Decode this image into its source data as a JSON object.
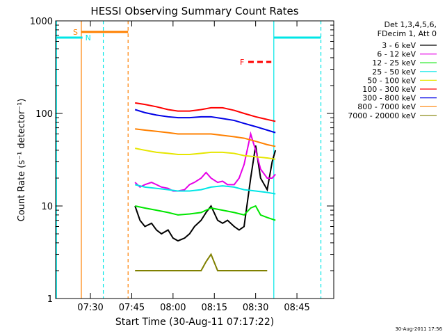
{
  "chart_data": {
    "type": "line",
    "title": "HESSI Observing Summary Count Rates",
    "xlabel": "Start Time (30-Aug-11 07:17:22)",
    "ylabel": "Count Rate (s⁻¹ detector⁻¹)",
    "y_scale": "log",
    "ylim": [
      1,
      1000
    ],
    "xlim": [
      7.2894,
      8.9728
    ],
    "x_ticks": [
      {
        "v": 7.5,
        "label": "07:30"
      },
      {
        "v": 7.75,
        "label": "07:45"
      },
      {
        "v": 8.0,
        "label": "08:00"
      },
      {
        "v": 8.25,
        "label": "08:15"
      },
      {
        "v": 8.5,
        "label": "08:30"
      },
      {
        "v": 8.75,
        "label": "08:45"
      }
    ],
    "y_ticks": [
      {
        "v": 1,
        "label": "1"
      },
      {
        "v": 10,
        "label": "10"
      },
      {
        "v": 100,
        "label": "100"
      },
      {
        "v": 1000,
        "label": "1000"
      }
    ],
    "info": [
      "Det 1,3,4,5,6,",
      "FDecim 1, Att 0"
    ],
    "legend_position": "right",
    "series": [
      {
        "name": "3 - 6 keV",
        "color": "#000000",
        "x": [
          7.77,
          7.8,
          7.83,
          7.87,
          7.9,
          7.93,
          7.97,
          8.0,
          8.03,
          8.07,
          8.1,
          8.13,
          8.17,
          8.2,
          8.23,
          8.27,
          8.3,
          8.33,
          8.37,
          8.4,
          8.43,
          8.47,
          8.5,
          8.53,
          8.57,
          8.6,
          8.62
        ],
        "y": [
          10,
          7,
          6,
          6.5,
          5.5,
          5,
          5.5,
          4.5,
          4.2,
          4.5,
          5,
          6,
          7,
          8.5,
          10,
          7,
          6.5,
          7,
          6,
          5.5,
          6,
          20,
          45,
          20,
          15,
          30,
          40
        ]
      },
      {
        "name": "6 - 12 keV",
        "color": "#e600e6",
        "x": [
          7.77,
          7.8,
          7.83,
          7.87,
          7.9,
          7.93,
          7.97,
          8.0,
          8.03,
          8.07,
          8.1,
          8.13,
          8.17,
          8.2,
          8.23,
          8.27,
          8.3,
          8.33,
          8.37,
          8.4,
          8.43,
          8.47,
          8.5,
          8.53,
          8.57,
          8.6,
          8.62
        ],
        "y": [
          18,
          16,
          17,
          18,
          17,
          16,
          15.5,
          14.5,
          14.5,
          15,
          17,
          18,
          20,
          23,
          20,
          18,
          18.5,
          17,
          17,
          20,
          28,
          60,
          40,
          25,
          20,
          20,
          22
        ]
      },
      {
        "name": "12 - 25 keV",
        "color": "#00e600",
        "x": [
          7.77,
          7.83,
          7.9,
          7.97,
          8.03,
          8.1,
          8.17,
          8.23,
          8.3,
          8.37,
          8.43,
          8.47,
          8.5,
          8.53,
          8.57,
          8.62
        ],
        "y": [
          10,
          9.5,
          9,
          8.5,
          8,
          8.2,
          8.5,
          9.5,
          9,
          8.5,
          8,
          9.5,
          10,
          8,
          7.5,
          7
        ]
      },
      {
        "name": "25 - 50 keV",
        "color": "#00e6e6",
        "x": [
          7.77,
          7.83,
          7.9,
          7.97,
          8.03,
          8.1,
          8.17,
          8.23,
          8.3,
          8.37,
          8.43,
          8.5,
          8.57,
          8.62
        ],
        "y": [
          17,
          16,
          15.5,
          15,
          14.5,
          14.5,
          15,
          16,
          16.5,
          16,
          15,
          14.5,
          14,
          13.5
        ]
      },
      {
        "name": "50 - 100 keV",
        "color": "#e6e600",
        "x": [
          7.77,
          7.83,
          7.9,
          7.97,
          8.03,
          8.1,
          8.17,
          8.23,
          8.3,
          8.37,
          8.43,
          8.5,
          8.57,
          8.62
        ],
        "y": [
          42,
          40,
          38,
          37,
          36,
          36,
          37,
          38,
          38,
          37,
          35,
          34,
          33,
          32
        ]
      },
      {
        "name": "100 - 300 keV",
        "color": "#ff0000",
        "x": [
          7.77,
          7.83,
          7.9,
          7.97,
          8.03,
          8.1,
          8.17,
          8.23,
          8.3,
          8.37,
          8.43,
          8.5,
          8.57,
          8.62
        ],
        "y": [
          130,
          125,
          118,
          110,
          106,
          106,
          110,
          115,
          115,
          108,
          100,
          92,
          86,
          82
        ]
      },
      {
        "name": "300 - 800 keV",
        "color": "#0000e6",
        "x": [
          7.77,
          7.83,
          7.9,
          7.97,
          8.03,
          8.1,
          8.17,
          8.23,
          8.3,
          8.37,
          8.43,
          8.5,
          8.57,
          8.62
        ],
        "y": [
          110,
          102,
          96,
          92,
          90,
          90,
          92,
          92,
          88,
          84,
          78,
          72,
          66,
          62
        ]
      },
      {
        "name": "800 - 7000 keV",
        "color": "#ff8000",
        "x": [
          7.77,
          7.83,
          7.9,
          7.97,
          8.03,
          8.1,
          8.17,
          8.23,
          8.3,
          8.37,
          8.43,
          8.5,
          8.57,
          8.62
        ],
        "y": [
          68,
          66,
          64,
          62,
          60,
          60,
          60,
          60,
          58,
          56,
          54,
          50,
          46,
          44
        ]
      },
      {
        "name": "7000 - 20000 keV",
        "color": "#808000",
        "x": [
          7.77,
          7.8,
          7.83,
          7.87,
          7.9,
          7.93,
          7.97,
          8.0,
          8.03,
          8.07,
          8.1,
          8.13,
          8.17,
          8.2,
          8.23,
          8.27,
          8.3,
          8.33,
          8.37,
          8.4,
          8.43,
          8.47,
          8.5,
          8.53,
          8.57
        ],
        "y": [
          2,
          2,
          2,
          2,
          2,
          2,
          2,
          2,
          2,
          2,
          2,
          2,
          2,
          2.5,
          3,
          2,
          2,
          2,
          2,
          2,
          2,
          2,
          2,
          2,
          2
        ]
      }
    ],
    "annotations": [
      {
        "label": "S",
        "color": "#ff8000",
        "x_start": 7.445,
        "x_end": 7.728,
        "y": 760
      },
      {
        "label": "N",
        "color": "#00e6e6",
        "x_start": 7.289,
        "x_end": 7.452,
        "y": 660
      },
      {
        "label": "F",
        "color": "#ff0000",
        "x_start": 8.455,
        "x_end": 8.595,
        "y": 360
      }
    ],
    "vertical_lines": [
      {
        "x": 7.445,
        "color": "#ff8000",
        "dashed": false
      },
      {
        "x": 7.728,
        "color": "#ff8000",
        "dashed": true
      },
      {
        "x": 7.578,
        "color": "#00e6e6",
        "dashed": true
      },
      {
        "x": 8.61,
        "color": "#00e6e6",
        "dashed": false
      },
      {
        "x": 8.895,
        "color": "#00e6e6",
        "dashed": true
      },
      {
        "x": 7.295,
        "color": "#00e6e6",
        "dashed": false
      }
    ],
    "saa_segments": [
      {
        "x_start": 8.61,
        "x_end": 8.895,
        "y": 660,
        "color": "#00e6e6"
      }
    ]
  },
  "footer": {
    "timestamp": "30-Aug-2011 17:56"
  }
}
